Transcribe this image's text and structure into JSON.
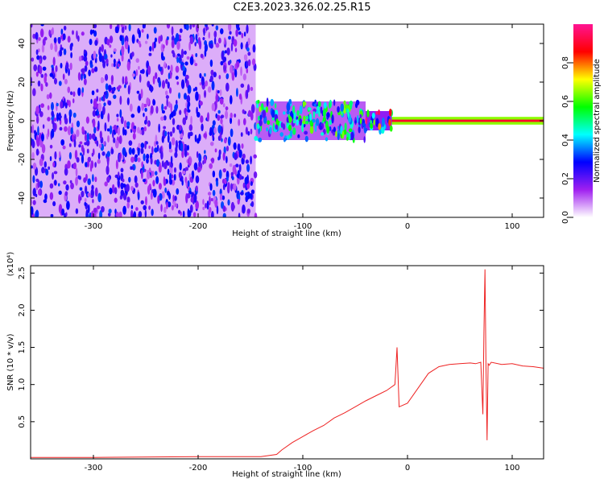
{
  "figure": {
    "title": "C2E3.2023.326.02.25.R15"
  },
  "colorbar": {
    "label": "Normalized spectral amplitude",
    "ticks": [
      0.0,
      0.2,
      0.4,
      0.6,
      0.8
    ],
    "tick_labels": [
      "0.0",
      "0.2",
      "0.4",
      "0.6",
      "0.8"
    ],
    "gradient": [
      "#ffffff",
      "#a020f0",
      "#0000ff",
      "#00ffff",
      "#00ff00",
      "#ffff00",
      "#ff0000",
      "#ff1493"
    ]
  },
  "chart_data": [
    {
      "type": "heatmap",
      "xlabel": "Height of straight line (km)",
      "ylabel": "Frequency (Hz)",
      "xlim": [
        -360,
        130
      ],
      "ylim": [
        -50,
        50
      ],
      "x_ticks": [
        -300,
        -200,
        -100,
        0,
        100
      ],
      "x_tick_labels": [
        "-300",
        "-200",
        "-100",
        "0",
        "100"
      ],
      "y_ticks": [
        -40,
        -20,
        0,
        20,
        40
      ],
      "y_tick_labels": [
        "-40",
        "-20",
        "0",
        "20",
        "40"
      ],
      "regions": [
        {
          "x": [
            -360,
            -145
          ],
          "freq_half_width": 50,
          "amplitude": 0.15,
          "description_kind": "noise"
        },
        {
          "x": [
            -145,
            -40
          ],
          "freq_half_width": 10,
          "amplitude": 0.3
        },
        {
          "x": [
            -40,
            -15
          ],
          "freq_half_width": 5,
          "amplitude": 0.45
        },
        {
          "x": [
            -15,
            130
          ],
          "freq_half_width": 2,
          "amplitude": 0.65
        },
        {
          "x": [
            -15,
            130
          ],
          "freq_half_width": 0.6,
          "amplitude": 0.9
        }
      ]
    },
    {
      "type": "line",
      "xlabel": "Height of straight line (km)",
      "ylabel": "SNR (10 * v/v)",
      "y_multiplier": "(x10⁴)",
      "xlim": [
        -360,
        130
      ],
      "ylim": [
        0,
        2.6
      ],
      "x_ticks": [
        -300,
        -200,
        -100,
        0,
        100
      ],
      "x_tick_labels": [
        "-300",
        "-200",
        "-100",
        "0",
        "100"
      ],
      "y_ticks": [
        0.5,
        1.0,
        1.5,
        2.0,
        2.5
      ],
      "y_tick_labels": [
        "0.5",
        "1.0",
        "1.5",
        "2.0",
        "2.5"
      ],
      "series": [
        {
          "color": "#ee2222",
          "x": [
            -360,
            -300,
            -200,
            -140,
            -125,
            -120,
            -110,
            -100,
            -90,
            -80,
            -70,
            -60,
            -50,
            -40,
            -30,
            -20,
            -12,
            -10,
            -8,
            0,
            10,
            20,
            30,
            40,
            50,
            60,
            65,
            70,
            72,
            73,
            74,
            75,
            76,
            77,
            78,
            80,
            90,
            100,
            110,
            120,
            130
          ],
          "y": [
            0.02,
            0.02,
            0.03,
            0.03,
            0.06,
            0.12,
            0.22,
            0.3,
            0.38,
            0.45,
            0.55,
            0.62,
            0.7,
            0.78,
            0.85,
            0.92,
            1.0,
            1.5,
            0.7,
            0.75,
            0.95,
            1.15,
            1.24,
            1.27,
            1.28,
            1.29,
            1.28,
            1.3,
            0.6,
            1.7,
            2.55,
            1.2,
            0.25,
            1.28,
            1.26,
            1.3,
            1.27,
            1.28,
            1.25,
            1.24,
            1.22
          ]
        }
      ]
    }
  ]
}
